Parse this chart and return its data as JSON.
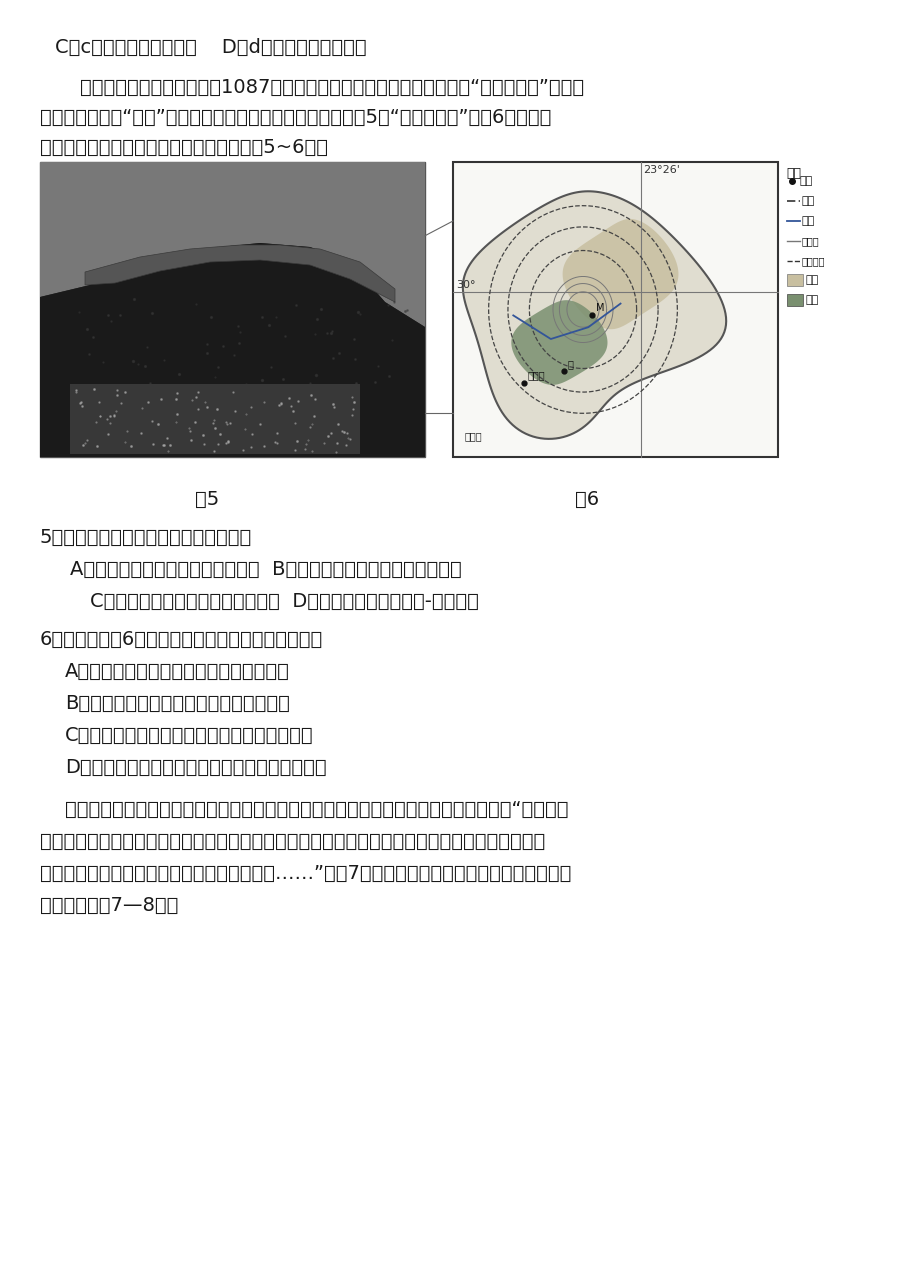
{
  "bg_color": "#ffffff",
  "text_color": "#1a1a1a",
  "font_size_body": 14,
  "page_content": {
    "line1": "C．c地偏北风，风力变小    D．d地偏南风，风力变小",
    "para1": "    桌山位于南非开普敦，海技1087米，固山顶如削平的桌面而得名，又叫“上帝的餐桌”。这座",
    "para2": "由石灰岩构成的“餐桌”上，呼现出一片荒芜的戟壁滩景象。图5为“桌山景观图”，图6为南非等",
    "para3": "高线、年降水量线和耕地分布图，读图回答5~6题。",
    "fig_label5": "图5",
    "fig_label6": "图6",
    "q5": "5．推测桌山及顶部的戟壁滩形成过程是",
    "q5a": "A．外力沉积，地壳抬升．外力侵蚀  B．外力沉积一地壳下沉．外力侵蚀",
    "q5c": "C．地壳下沉．外力沉积．外力侵蚀  D．岩浆侵入．岩石变质-外力风化",
    "q6": "6．下列关于图6所示区域地理环境的叙述，正确的是",
    "q6a": "A．年降水量的分布特点是山地多，平原少",
    "q6b": "B．影响耕地分布的主要因素是地形和降水",
    "q6c": "C．奥兰治河上游径流量较小，下游径流量较大",
    "q6d": "D．区域种植业发展的最大自然障碍是荒漠面积大",
    "para_last1": "    某月，一地理爱好者前往西双版纳的纳板河国家级自然保护区考察。他在日志中写道：“区域内中",
    "para_last2": "低山与河谷相间分布。连续几天的雷雨后，天刚放晴，走在枝繁叶茂的森林中，倒伏的树木上常可",
    "para_last3": "以发现各种类型大型真菌，它们的生长季到了……”。图7为纳板河流域国家级自然保护区范围示意",
    "para_last4": "图．据此回筗7—8题。"
  }
}
